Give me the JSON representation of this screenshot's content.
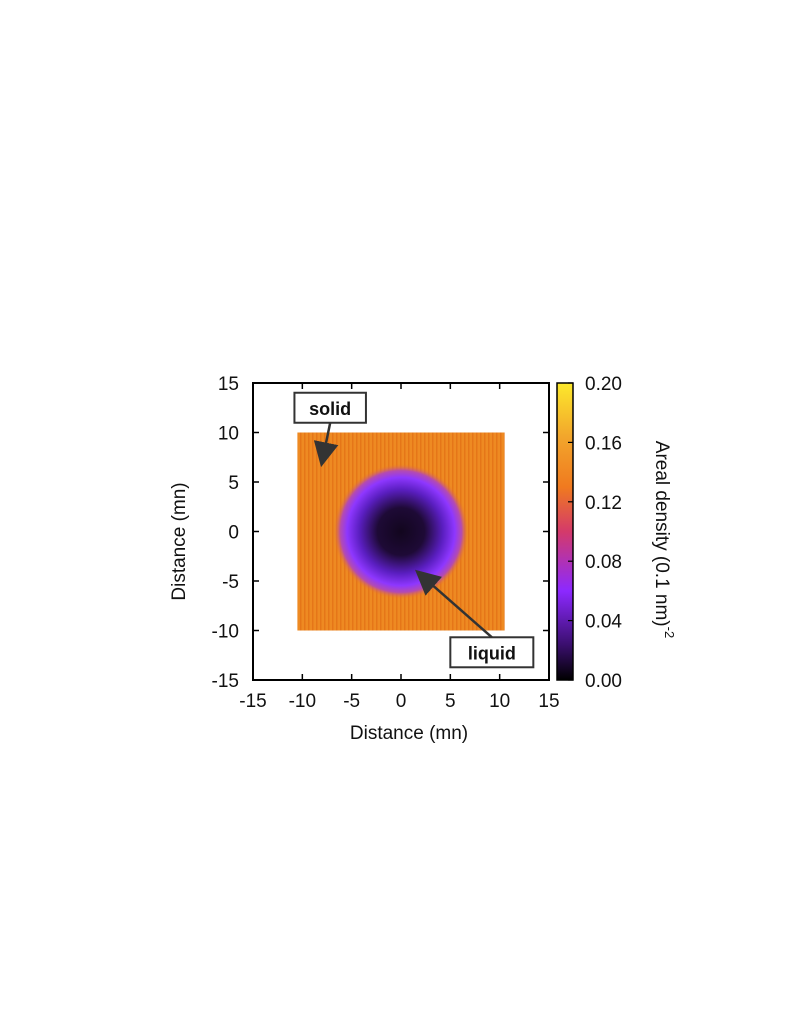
{
  "chart_data": {
    "type": "heatmap",
    "xlabel": "Distance (mn)",
    "ylabel": "Distance (mn)",
    "xlim": [
      -15,
      15
    ],
    "ylim": [
      -15,
      15
    ],
    "xticks": [
      -15,
      -10,
      -5,
      0,
      5,
      10,
      15
    ],
    "yticks": [
      -15,
      -10,
      -5,
      0,
      5,
      10,
      15
    ],
    "xtick_labels": [
      "-15",
      "-10",
      "-5",
      "0",
      "5",
      "10",
      "15"
    ],
    "ytick_labels": [
      "-15",
      "-10",
      "-5",
      "0",
      "5",
      "10",
      "15"
    ],
    "data_extent": {
      "x": [
        -10.5,
        10.5
      ],
      "y": [
        -10,
        10
      ]
    },
    "background_density": 0.13,
    "droplet": {
      "center": [
        0,
        0
      ],
      "radius": 6.1,
      "core_density": 0.01,
      "rim_density": 0.055
    },
    "colorbar": {
      "label": "Areal density (0.1 nm)",
      "label_superscript": "-2",
      "range": [
        0,
        0.2
      ],
      "ticks": [
        0.0,
        0.04,
        0.08,
        0.12,
        0.16,
        0.2
      ],
      "tick_labels": [
        "0.00",
        "0.04",
        "0.08",
        "0.12",
        "0.16",
        "0.20"
      ],
      "colormap": [
        "#000000",
        "#3b0f6f",
        "#8c29ff",
        "#d43a6a",
        "#f07a1f",
        "#f2a62c",
        "#fde92c"
      ]
    },
    "annotations": [
      {
        "text": "solid",
        "box_at": [
          -10.8,
          12.5
        ],
        "points_to": [
          -8,
          7
        ]
      },
      {
        "text": "liquid",
        "box_at": [
          5,
          -12.2
        ],
        "points_to": [
          1.8,
          -4.2
        ]
      }
    ],
    "grid": false
  }
}
